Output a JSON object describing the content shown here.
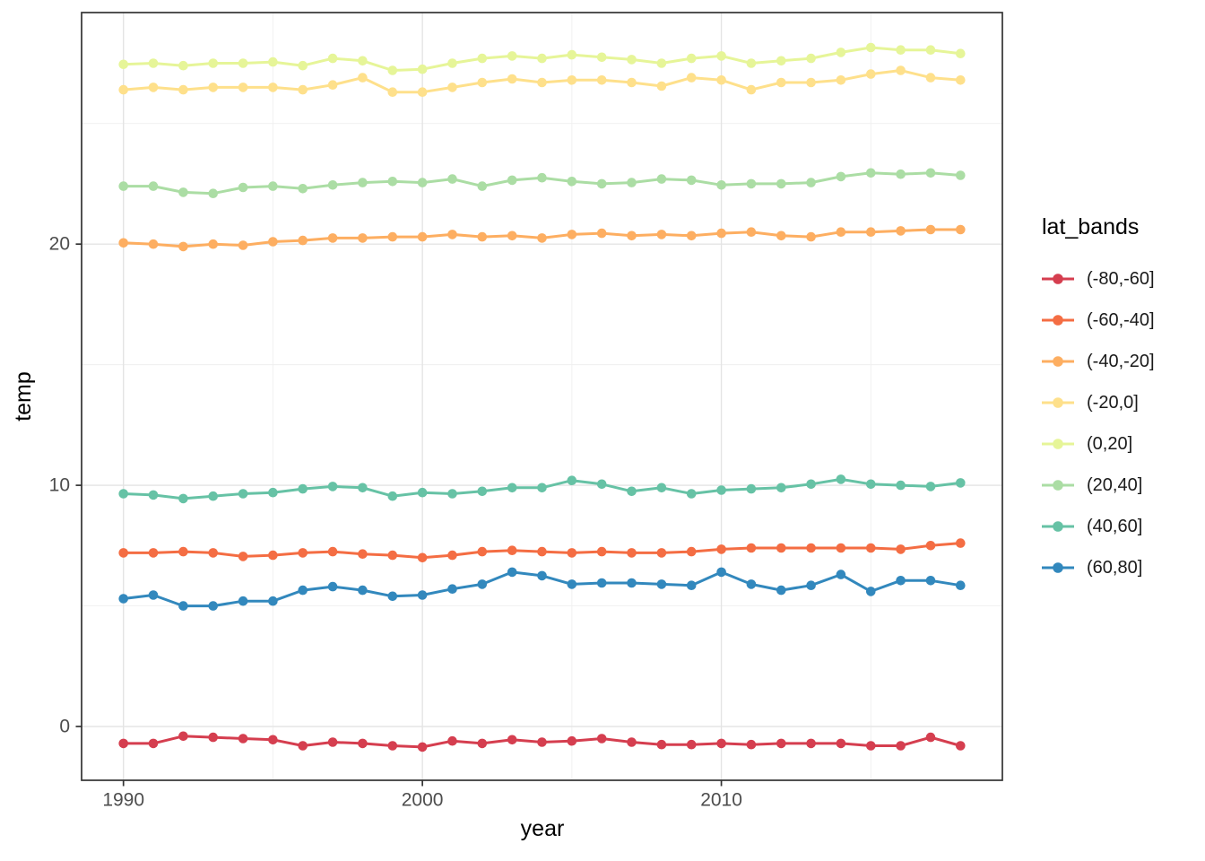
{
  "chart_data": {
    "type": "line",
    "title": "",
    "xlabel": "year",
    "ylabel": "temp",
    "legend_title": "lat_bands",
    "legend_position": "right",
    "grid": true,
    "x": [
      1990,
      1991,
      1992,
      1993,
      1994,
      1995,
      1996,
      1997,
      1998,
      1999,
      2000,
      2001,
      2002,
      2003,
      2004,
      2005,
      2006,
      2007,
      2008,
      2009,
      2010,
      2011,
      2012,
      2013,
      2014,
      2015,
      2016,
      2017,
      2018
    ],
    "x_domain": [
      1988.6,
      2019.4
    ],
    "y_domain": [
      -2.23,
      29.6
    ],
    "x_ticks": {
      "values": [
        1990,
        2000,
        2010
      ],
      "labels": [
        "1990",
        "2000",
        "2010"
      ]
    },
    "y_ticks": {
      "values": [
        0,
        10,
        20
      ],
      "labels": [
        "0",
        "10",
        "20"
      ]
    },
    "x_minor_ticks": [
      1995,
      2005,
      2015
    ],
    "y_minor_ticks": [
      5,
      15,
      25
    ],
    "series": [
      {
        "name": "(-80,-60]",
        "color": "#d53e4f",
        "values": [
          -0.7,
          -0.7,
          -0.4,
          -0.45,
          -0.5,
          -0.55,
          -0.8,
          -0.65,
          -0.7,
          -0.8,
          -0.85,
          -0.6,
          -0.7,
          -0.55,
          -0.65,
          -0.6,
          -0.5,
          -0.65,
          -0.75,
          -0.75,
          -0.7,
          -0.75,
          -0.7,
          -0.7,
          -0.7,
          -0.8,
          -0.8,
          -0.45,
          -0.8
        ]
      },
      {
        "name": "(-60,-40]",
        "color": "#f46d43",
        "values": [
          7.2,
          7.2,
          7.25,
          7.2,
          7.05,
          7.1,
          7.2,
          7.25,
          7.15,
          7.1,
          7.0,
          7.1,
          7.25,
          7.3,
          7.25,
          7.2,
          7.25,
          7.2,
          7.2,
          7.25,
          7.35,
          7.4,
          7.4,
          7.4,
          7.4,
          7.4,
          7.35,
          7.5,
          7.6
        ]
      },
      {
        "name": "(-40,-20]",
        "color": "#fdae61",
        "values": [
          20.05,
          20.0,
          19.9,
          20.0,
          19.95,
          20.1,
          20.15,
          20.25,
          20.25,
          20.3,
          20.3,
          20.4,
          20.3,
          20.35,
          20.25,
          20.4,
          20.45,
          20.35,
          20.4,
          20.35,
          20.45,
          20.5,
          20.35,
          20.3,
          20.5,
          20.5,
          20.55,
          20.6,
          20.6
        ]
      },
      {
        "name": "(-20,0]",
        "color": "#fee08b",
        "values": [
          26.4,
          26.5,
          26.4,
          26.5,
          26.5,
          26.5,
          26.4,
          26.6,
          26.9,
          26.3,
          26.3,
          26.5,
          26.7,
          26.85,
          26.7,
          26.8,
          26.8,
          26.7,
          26.55,
          26.9,
          26.8,
          26.4,
          26.7,
          26.7,
          26.8,
          27.05,
          27.2,
          26.9,
          26.8
        ]
      },
      {
        "name": "(0,20]",
        "color": "#e6f598",
        "values": [
          27.45,
          27.5,
          27.4,
          27.5,
          27.5,
          27.55,
          27.4,
          27.7,
          27.6,
          27.2,
          27.25,
          27.5,
          27.7,
          27.8,
          27.7,
          27.85,
          27.75,
          27.65,
          27.5,
          27.7,
          27.8,
          27.5,
          27.6,
          27.7,
          27.95,
          28.15,
          28.05,
          28.05,
          27.9
        ]
      },
      {
        "name": "(20,40]",
        "color": "#abdda4",
        "values": [
          22.4,
          22.4,
          22.15,
          22.1,
          22.35,
          22.4,
          22.3,
          22.45,
          22.55,
          22.6,
          22.55,
          22.7,
          22.4,
          22.65,
          22.75,
          22.6,
          22.5,
          22.55,
          22.7,
          22.65,
          22.45,
          22.5,
          22.5,
          22.55,
          22.8,
          22.95,
          22.9,
          22.95,
          22.85
        ]
      },
      {
        "name": "(40,60]",
        "color": "#66c2a5",
        "values": [
          9.65,
          9.6,
          9.45,
          9.55,
          9.65,
          9.7,
          9.85,
          9.95,
          9.9,
          9.55,
          9.7,
          9.65,
          9.75,
          9.9,
          9.9,
          10.2,
          10.05,
          9.75,
          9.9,
          9.65,
          9.8,
          9.85,
          9.9,
          10.05,
          10.25,
          10.05,
          10.0,
          9.95,
          10.1
        ]
      },
      {
        "name": "(60,80]",
        "color": "#3288bd",
        "values": [
          5.3,
          5.45,
          5.0,
          5.0,
          5.2,
          5.2,
          5.65,
          5.8,
          5.65,
          5.4,
          5.45,
          5.7,
          5.9,
          6.4,
          6.25,
          5.9,
          5.95,
          5.95,
          5.9,
          5.85,
          6.4,
          5.9,
          5.65,
          5.85,
          6.3,
          5.6,
          6.05,
          6.05,
          5.85
        ]
      }
    ],
    "style": {
      "panel_border_color": "#333333",
      "major_grid_color": "#e4e4e4",
      "minor_grid_color": "#efefef",
      "tick_color": "#333333",
      "tick_label_color": "#4d4d4d",
      "point_radius": 5.3,
      "line_width": 3
    }
  }
}
